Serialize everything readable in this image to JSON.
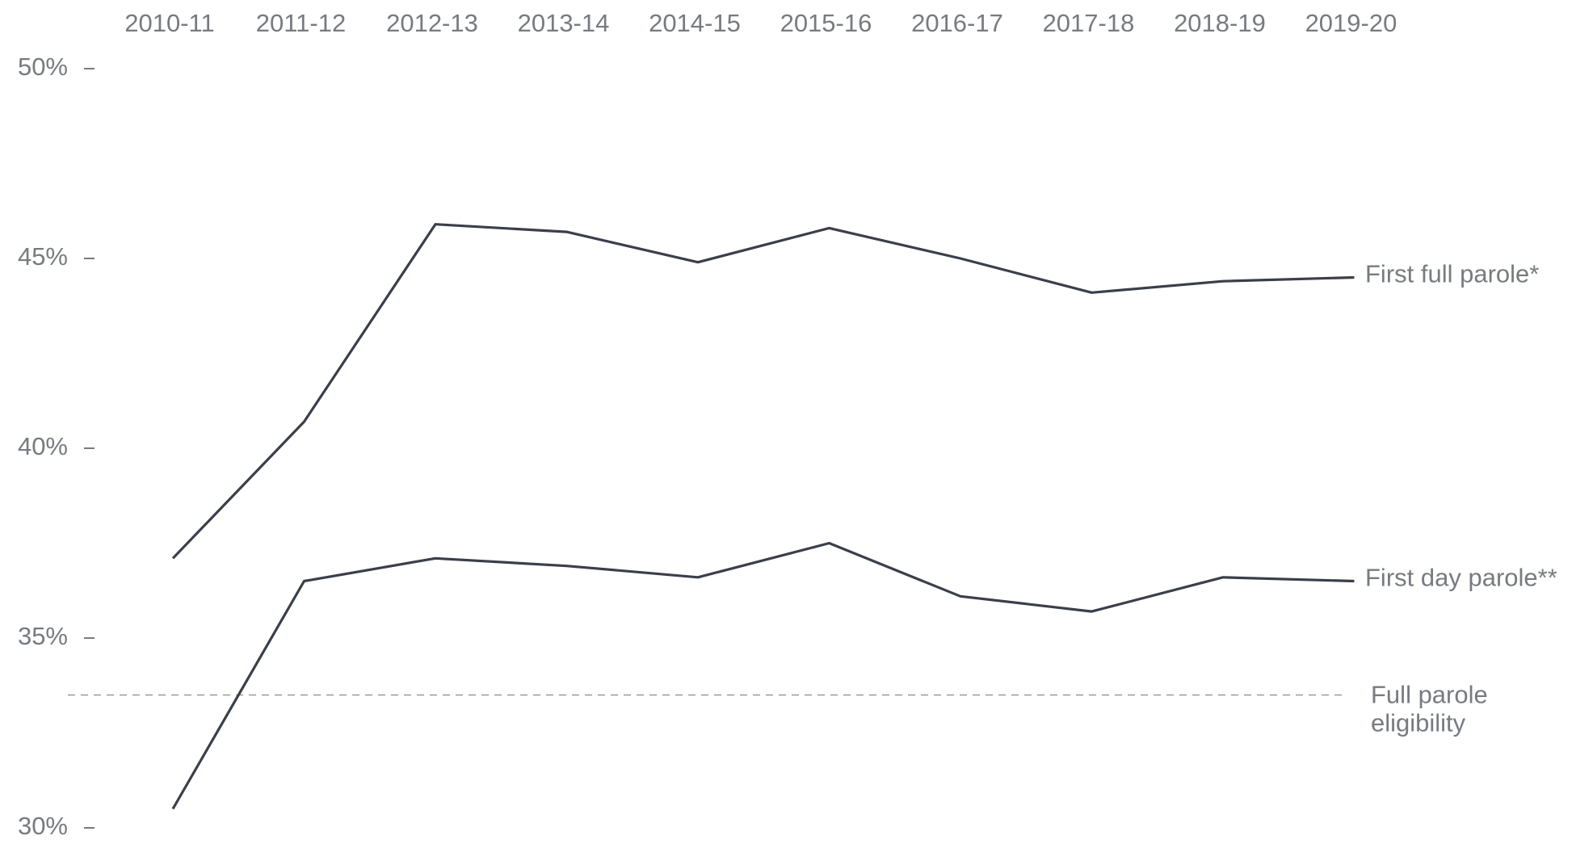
{
  "chart_data": {
    "type": "line",
    "categories": [
      "2010-11",
      "2011-12",
      "2012-13",
      "2013-14",
      "2014-15",
      "2015-16",
      "2016-17",
      "2017-18",
      "2018-19",
      "2019-20"
    ],
    "series": [
      {
        "name": "First full parole*",
        "color": "#3a3f4a",
        "values": [
          37.1,
          40.7,
          45.9,
          45.7,
          44.9,
          45.8,
          45.0,
          44.1,
          44.4,
          44.5
        ]
      },
      {
        "name": "First day parole**",
        "color": "#3a3f4a",
        "values": [
          30.5,
          36.5,
          37.1,
          36.9,
          36.6,
          37.5,
          36.1,
          35.7,
          36.6,
          36.5
        ]
      }
    ],
    "ylim": [
      30,
      50
    ],
    "yticks": [
      {
        "value": 30,
        "label": "30%"
      },
      {
        "value": 35,
        "label": "35%"
      },
      {
        "value": 40,
        "label": "40%"
      },
      {
        "value": 45,
        "label": "45%"
      },
      {
        "value": 50,
        "label": "50%"
      }
    ],
    "reference_lines": [
      {
        "value": 33.5,
        "label": [
          "Full parole",
          "eligibility"
        ],
        "color": "#999999"
      }
    ]
  }
}
